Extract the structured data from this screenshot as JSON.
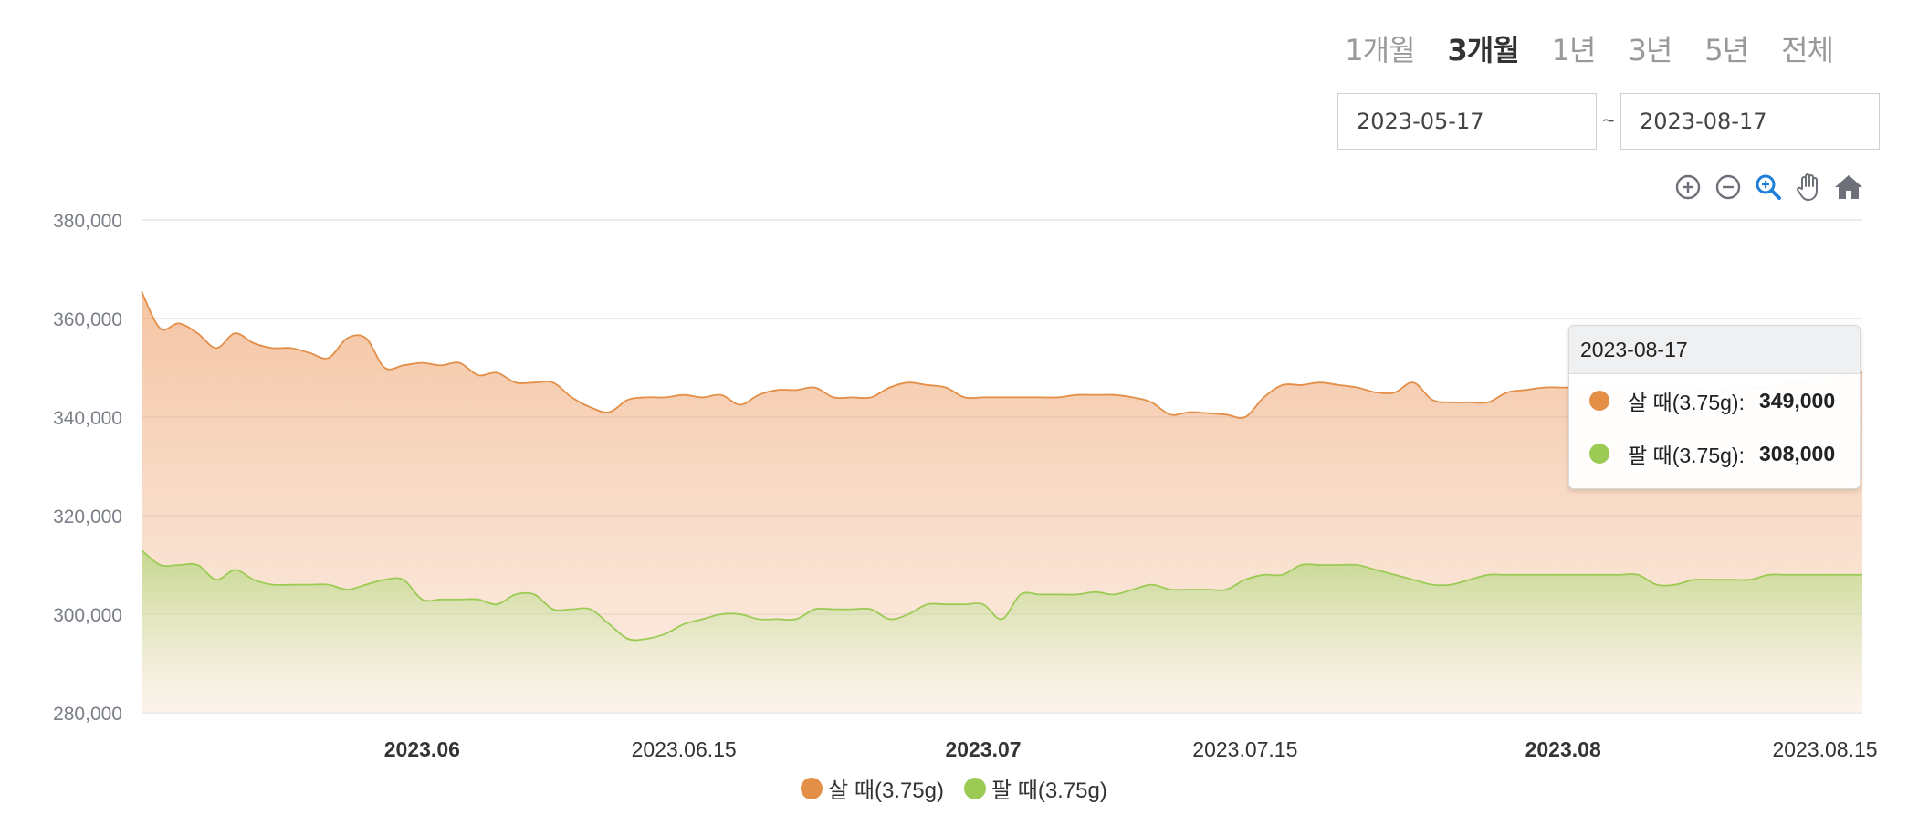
{
  "period_tabs": [
    {
      "label": "1개월",
      "active": false
    },
    {
      "label": "3개월",
      "active": true
    },
    {
      "label": "1년",
      "active": false
    },
    {
      "label": "3년",
      "active": false
    },
    {
      "label": "5년",
      "active": false
    },
    {
      "label": "전체",
      "active": false
    }
  ],
  "date_range": {
    "start": "2023-05-17",
    "separator": "~",
    "end": "2023-08-17"
  },
  "toolbar": [
    {
      "name": "zoom-in-icon"
    },
    {
      "name": "zoom-out-icon"
    },
    {
      "name": "selection-zoom-icon"
    },
    {
      "name": "pan-icon"
    },
    {
      "name": "home-icon"
    }
  ],
  "tooltip": {
    "date": "2023-08-17",
    "rows": [
      {
        "label": "살 때(3.75g):",
        "value": "349,000",
        "color": "#e38f48"
      },
      {
        "label": "팔 때(3.75g):",
        "value": "308,000",
        "color": "#9ccb55"
      }
    ]
  },
  "legend": [
    {
      "label": "살 때(3.75g)",
      "color": "#e38f48"
    },
    {
      "label": "팔 때(3.75g)",
      "color": "#9ccb55"
    }
  ],
  "chart_data": {
    "type": "area",
    "title": "",
    "xlabel": "",
    "ylabel": "",
    "ylim": [
      280000,
      380000
    ],
    "yticks": [
      "380,000",
      "360,000",
      "340,000",
      "320,000",
      "300,000",
      "280,000"
    ],
    "xticks": [
      {
        "label": "2023.06",
        "date": "2023-06-01",
        "bold": true
      },
      {
        "label": "2023.06.15",
        "date": "2023-06-15",
        "bold": false
      },
      {
        "label": "2023.07",
        "date": "2023-07-01",
        "bold": true
      },
      {
        "label": "2023.07.15",
        "date": "2023-07-15",
        "bold": false
      },
      {
        "label": "2023.08",
        "date": "2023-08-01",
        "bold": true
      },
      {
        "label": "2023.08.15",
        "date": "2023-08-15",
        "bold": false
      }
    ],
    "x": [
      "2023-05-17",
      "2023-05-18",
      "2023-05-19",
      "2023-05-20",
      "2023-05-21",
      "2023-05-22",
      "2023-05-23",
      "2023-05-24",
      "2023-05-25",
      "2023-05-26",
      "2023-05-27",
      "2023-05-28",
      "2023-05-29",
      "2023-05-30",
      "2023-05-31",
      "2023-06-01",
      "2023-06-02",
      "2023-06-03",
      "2023-06-04",
      "2023-06-05",
      "2023-06-06",
      "2023-06-07",
      "2023-06-08",
      "2023-06-09",
      "2023-06-10",
      "2023-06-11",
      "2023-06-12",
      "2023-06-13",
      "2023-06-14",
      "2023-06-15",
      "2023-06-16",
      "2023-06-17",
      "2023-06-18",
      "2023-06-19",
      "2023-06-20",
      "2023-06-21",
      "2023-06-22",
      "2023-06-23",
      "2023-06-24",
      "2023-06-25",
      "2023-06-26",
      "2023-06-27",
      "2023-06-28",
      "2023-06-29",
      "2023-06-30",
      "2023-07-01",
      "2023-07-02",
      "2023-07-03",
      "2023-07-04",
      "2023-07-05",
      "2023-07-06",
      "2023-07-07",
      "2023-07-08",
      "2023-07-09",
      "2023-07-10",
      "2023-07-11",
      "2023-07-12",
      "2023-07-13",
      "2023-07-14",
      "2023-07-15",
      "2023-07-16",
      "2023-07-17",
      "2023-07-18",
      "2023-07-19",
      "2023-07-20",
      "2023-07-21",
      "2023-07-22",
      "2023-07-23",
      "2023-07-24",
      "2023-07-25",
      "2023-07-26",
      "2023-07-27",
      "2023-07-28",
      "2023-07-29",
      "2023-07-30",
      "2023-07-31",
      "2023-08-01",
      "2023-08-02",
      "2023-08-03",
      "2023-08-04",
      "2023-08-05",
      "2023-08-06",
      "2023-08-07",
      "2023-08-08",
      "2023-08-09",
      "2023-08-10",
      "2023-08-11",
      "2023-08-12",
      "2023-08-13",
      "2023-08-14",
      "2023-08-15",
      "2023-08-16",
      "2023-08-17"
    ],
    "series": [
      {
        "name": "살 때(3.75g)",
        "color": "#e38f48",
        "values": [
          365500,
          358000,
          359000,
          357000,
          354000,
          357000,
          355000,
          354000,
          354000,
          353000,
          352000,
          356000,
          356000,
          350000,
          350500,
          351000,
          350500,
          351000,
          348500,
          349000,
          347000,
          347000,
          347000,
          344000,
          342000,
          341000,
          343500,
          344000,
          344000,
          344500,
          344000,
          344500,
          342500,
          344500,
          345500,
          345500,
          346000,
          344000,
          344000,
          344000,
          346000,
          347000,
          346500,
          346000,
          344000,
          344000,
          344000,
          344000,
          344000,
          344000,
          344500,
          344500,
          344500,
          344000,
          343000,
          340500,
          341000,
          340800,
          340500,
          340000,
          344000,
          346500,
          346500,
          347000,
          346500,
          346000,
          345000,
          345000,
          347000,
          343500,
          343000,
          343000,
          343000,
          345000,
          345500,
          346000,
          346000,
          346000,
          346000,
          346000,
          346000,
          346000,
          346000,
          346000,
          345000,
          346000,
          346000,
          346000,
          347000,
          347000,
          348000,
          348500,
          349000
        ]
      },
      {
        "name": "팔 때(3.75g)",
        "color": "#9ccb55",
        "values": [
          313000,
          310000,
          310000,
          310000,
          307000,
          309000,
          307000,
          306000,
          306000,
          306000,
          306000,
          305000,
          306000,
          307000,
          307000,
          303000,
          303000,
          303000,
          303000,
          302000,
          304000,
          304000,
          301000,
          301000,
          301000,
          298000,
          295000,
          295000,
          296000,
          298000,
          299000,
          300000,
          300000,
          299000,
          299000,
          299000,
          301000,
          301000,
          301000,
          301000,
          299000,
          300000,
          302000,
          302000,
          302000,
          302000,
          299000,
          304000,
          304000,
          304000,
          304000,
          304500,
          304000,
          305000,
          306000,
          305000,
          305000,
          305000,
          305000,
          307000,
          308000,
          308000,
          310000,
          310000,
          310000,
          310000,
          309000,
          308000,
          307000,
          306000,
          306000,
          307000,
          308000,
          308000,
          308000,
          308000,
          308000,
          308000,
          308000,
          308000,
          308000,
          306000,
          306000,
          307000,
          307000,
          307000,
          307000,
          308000,
          308000,
          308000,
          308000,
          308000,
          308000
        ]
      }
    ],
    "grid": true,
    "legend_position": "bottom-center"
  }
}
